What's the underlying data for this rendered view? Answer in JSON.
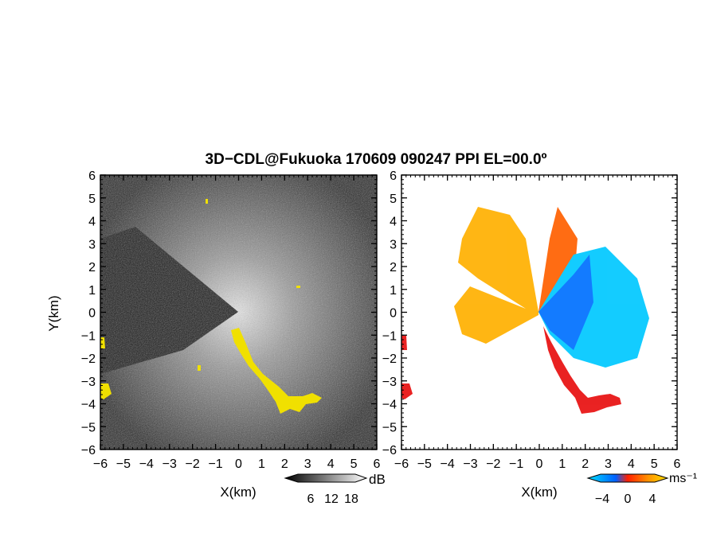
{
  "title": "3D−CDL@Fukuoka 170609 090247 PPI EL=00.0º",
  "chart_data": [
    {
      "type": "heatmap",
      "panel": "reflectivity",
      "xlabel": "X(km)",
      "ylabel": "Y(km)",
      "xlim": [
        -6,
        6
      ],
      "ylim": [
        -6,
        6
      ],
      "x_ticks": [
        "−6",
        "−5",
        "−4",
        "−3",
        "−2",
        "−1",
        "0",
        "1",
        "2",
        "3",
        "4",
        "5",
        "6"
      ],
      "y_ticks": [
        "6",
        "5",
        "4",
        "3",
        "2",
        "1",
        "0",
        "−1",
        "−2",
        "−3",
        "−4",
        "−5",
        "−6"
      ],
      "colorbar": {
        "unit": "dB",
        "tick_labels": [
          "6",
          "12",
          "18"
        ],
        "colors": [
          "#000000",
          "#ffffff"
        ]
      },
      "mask_color": "#f0e000",
      "background_color": "#2a2a2a"
    },
    {
      "type": "heatmap",
      "panel": "doppler_velocity",
      "xlabel": "X(km)",
      "ylabel": "",
      "xlim": [
        -6,
        6
      ],
      "ylim": [
        -6,
        6
      ],
      "x_ticks": [
        "−6",
        "−5",
        "−4",
        "−3",
        "−2",
        "−1",
        "0",
        "1",
        "2",
        "3",
        "4",
        "5",
        "6"
      ],
      "y_ticks": [
        "6",
        "5",
        "4",
        "3",
        "2",
        "1",
        "0",
        "−1",
        "−2",
        "−3",
        "−4",
        "−5",
        "−6"
      ],
      "colorbar": {
        "unit": "ms⁻¹",
        "tick_labels": [
          "−4",
          "0",
          "4"
        ],
        "colors": [
          "#00e0ff",
          "#0060ff",
          "#ff2000",
          "#ff9000",
          "#ffe000"
        ]
      },
      "background_color": "#ffffff"
    }
  ]
}
